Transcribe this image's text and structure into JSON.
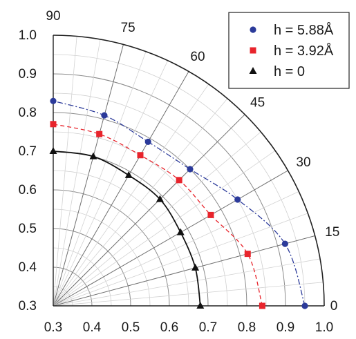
{
  "chart_data": {
    "type": "scatter",
    "subtype": "polar-quadrant",
    "radial_axis": {
      "range": [
        0.3,
        1.0
      ],
      "ticks": [
        "0.3",
        "0.4",
        "0.5",
        "0.6",
        "0.7",
        "0.8",
        "0.9",
        "1.0"
      ],
      "tick_values": [
        0.3,
        0.4,
        0.5,
        0.6,
        0.7,
        0.8,
        0.9,
        1.0
      ]
    },
    "angular_axis": {
      "unit": "degrees",
      "range": [
        0,
        90
      ],
      "ticks": [
        "0",
        "15",
        "30",
        "45",
        "60",
        "75",
        "90"
      ],
      "tick_values": [
        0,
        15,
        30,
        45,
        60,
        75,
        90
      ]
    },
    "grid": true,
    "legend_position": "top-right",
    "series": [
      {
        "name": "h = 5.88Å",
        "color": "#2b3a9a",
        "marker": "circle",
        "line": "dash-dot",
        "angles": [
          0,
          15,
          30,
          45,
          60,
          75,
          90
        ],
        "values": [
          0.95,
          0.92,
          0.85,
          0.8,
          0.79,
          0.81,
          0.83
        ]
      },
      {
        "name": "h = 3.92Å",
        "color": "#e8242c",
        "marker": "square",
        "line": "dashed",
        "angles": [
          0,
          15,
          30,
          45,
          60,
          75,
          90
        ],
        "values": [
          0.84,
          0.82,
          0.77,
          0.76,
          0.75,
          0.76,
          0.77
        ]
      },
      {
        "name": "h = 0",
        "color": "#111111",
        "marker": "triangle",
        "line": "solid",
        "angles": [
          0,
          15,
          30,
          45,
          60,
          75,
          90
        ],
        "values": [
          0.68,
          0.68,
          0.68,
          0.69,
          0.69,
          0.7,
          0.7
        ]
      }
    ]
  }
}
